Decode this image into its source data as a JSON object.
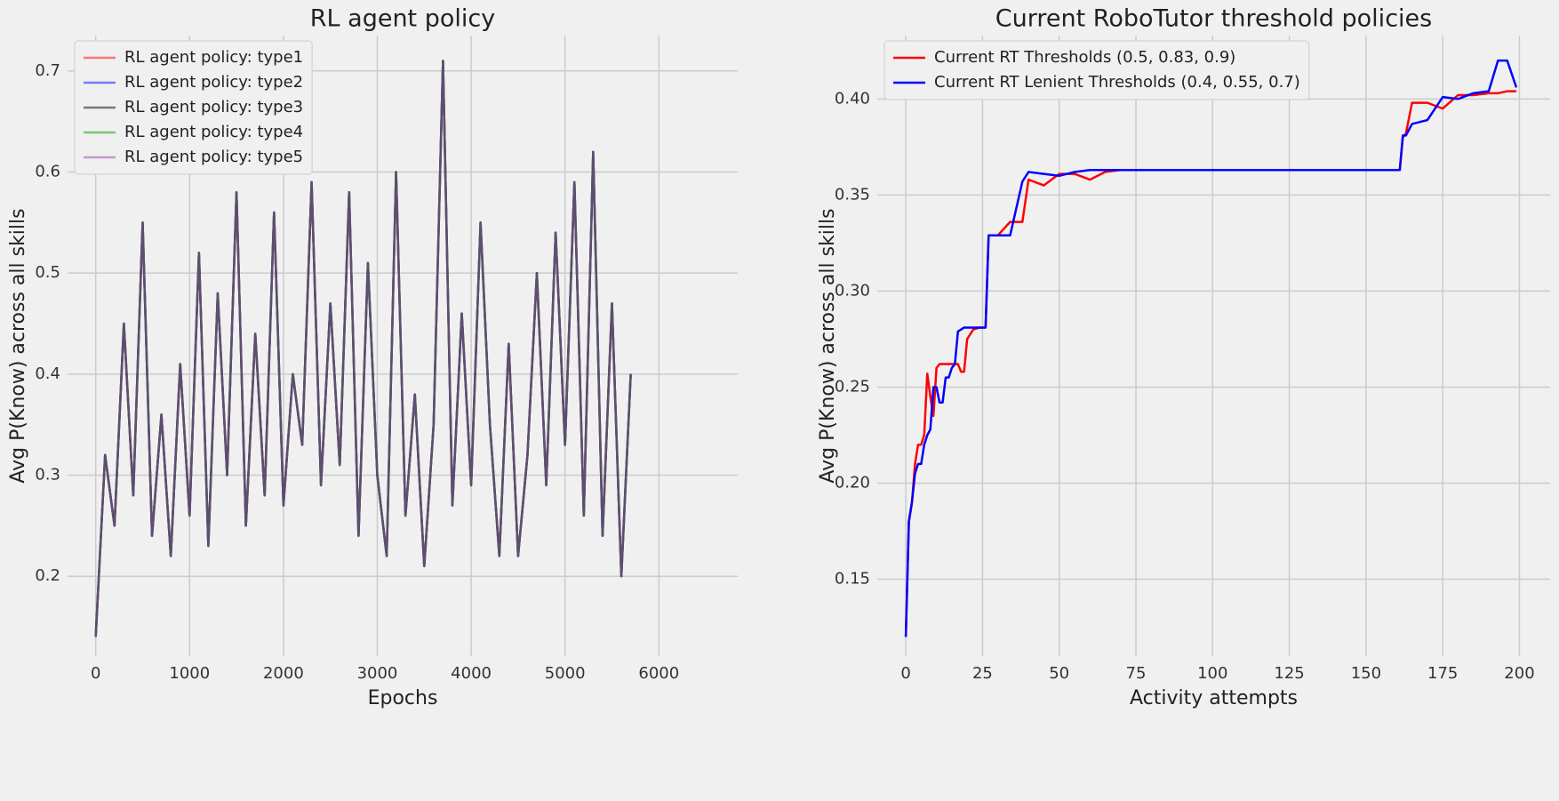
{
  "chart_data": [
    {
      "type": "line",
      "title": "RL agent policy",
      "x_label": "Epochs",
      "y_label": "Avg P(Know) across all skills",
      "x": [
        0,
        100,
        200,
        300,
        400,
        500,
        600,
        700,
        800,
        900,
        1000,
        1100,
        1200,
        1300,
        1400,
        1500,
        1600,
        1700,
        1800,
        1900,
        2000,
        2100,
        2200,
        2300,
        2400,
        2500,
        2600,
        2700,
        2800,
        2900,
        3000,
        3100,
        3200,
        3300,
        3400,
        3500,
        3600,
        3700,
        3800,
        3900,
        4000,
        4100,
        4200,
        4300,
        4400,
        4500,
        4600,
        4700,
        4800,
        4900,
        5000,
        5100,
        5200,
        5300,
        5400,
        5500,
        5600,
        5700
      ],
      "series": [
        {
          "name": "RL agent policy: type1",
          "color": "#ff0000",
          "values": [
            0.14,
            0.32,
            0.25,
            0.45,
            0.28,
            0.55,
            0.24,
            0.36,
            0.22,
            0.41,
            0.26,
            0.52,
            0.23,
            0.48,
            0.3,
            0.58,
            0.25,
            0.44,
            0.28,
            0.56,
            0.27,
            0.4,
            0.33,
            0.59,
            0.29,
            0.47,
            0.31,
            0.58,
            0.24,
            0.51,
            0.3,
            0.22,
            0.6,
            0.26,
            0.38,
            0.21,
            0.35,
            0.71,
            0.27,
            0.46,
            0.29,
            0.55,
            0.35,
            0.22,
            0.43,
            0.22,
            0.32,
            0.5,
            0.29,
            0.54,
            0.33,
            0.59,
            0.26,
            0.62,
            0.24,
            0.47,
            0.2,
            0.4
          ]
        },
        {
          "name": "RL agent policy: type2",
          "color": "#0000ff",
          "values": [
            0.14,
            0.32,
            0.25,
            0.45,
            0.28,
            0.55,
            0.24,
            0.36,
            0.22,
            0.41,
            0.26,
            0.52,
            0.23,
            0.48,
            0.3,
            0.58,
            0.25,
            0.44,
            0.28,
            0.56,
            0.27,
            0.4,
            0.33,
            0.59,
            0.29,
            0.47,
            0.31,
            0.58,
            0.24,
            0.51,
            0.3,
            0.22,
            0.6,
            0.26,
            0.38,
            0.21,
            0.35,
            0.71,
            0.27,
            0.46,
            0.29,
            0.55,
            0.35,
            0.22,
            0.43,
            0.22,
            0.32,
            0.5,
            0.29,
            0.54,
            0.33,
            0.59,
            0.26,
            0.62,
            0.24,
            0.47,
            0.2,
            0.4
          ]
        },
        {
          "name": "RL agent policy: type3",
          "color": "#000000",
          "values": [
            0.14,
            0.32,
            0.25,
            0.45,
            0.28,
            0.55,
            0.24,
            0.36,
            0.22,
            0.41,
            0.26,
            0.52,
            0.23,
            0.48,
            0.3,
            0.58,
            0.25,
            0.44,
            0.28,
            0.56,
            0.27,
            0.4,
            0.33,
            0.59,
            0.29,
            0.47,
            0.31,
            0.58,
            0.24,
            0.51,
            0.3,
            0.22,
            0.6,
            0.26,
            0.38,
            0.21,
            0.35,
            0.71,
            0.27,
            0.46,
            0.29,
            0.55,
            0.35,
            0.22,
            0.43,
            0.22,
            0.32,
            0.5,
            0.29,
            0.54,
            0.33,
            0.59,
            0.26,
            0.62,
            0.24,
            0.47,
            0.2,
            0.4
          ]
        },
        {
          "name": "RL agent policy: type4",
          "color": "#00a000",
          "values": [
            0.14,
            0.32,
            0.25,
            0.45,
            0.28,
            0.55,
            0.24,
            0.36,
            0.22,
            0.41,
            0.26,
            0.52,
            0.23,
            0.48,
            0.3,
            0.58,
            0.25,
            0.44,
            0.28,
            0.56,
            0.27,
            0.4,
            0.33,
            0.59,
            0.29,
            0.47,
            0.31,
            0.58,
            0.24,
            0.51,
            0.3,
            0.22,
            0.6,
            0.26,
            0.38,
            0.21,
            0.35,
            0.71,
            0.27,
            0.46,
            0.29,
            0.55,
            0.35,
            0.22,
            0.43,
            0.22,
            0.32,
            0.5,
            0.29,
            0.54,
            0.33,
            0.59,
            0.26,
            0.62,
            0.24,
            0.47,
            0.2,
            0.4
          ]
        },
        {
          "name": "RL agent policy: type5",
          "color": "#9b3fb0",
          "values": [
            0.14,
            0.32,
            0.25,
            0.45,
            0.28,
            0.55,
            0.24,
            0.36,
            0.22,
            0.41,
            0.26,
            0.52,
            0.23,
            0.48,
            0.3,
            0.58,
            0.25,
            0.44,
            0.28,
            0.56,
            0.27,
            0.4,
            0.33,
            0.59,
            0.29,
            0.47,
            0.31,
            0.58,
            0.24,
            0.51,
            0.3,
            0.22,
            0.6,
            0.26,
            0.38,
            0.21,
            0.35,
            0.71,
            0.27,
            0.46,
            0.29,
            0.55,
            0.35,
            0.22,
            0.43,
            0.22,
            0.32,
            0.5,
            0.29,
            0.54,
            0.33,
            0.59,
            0.26,
            0.62,
            0.24,
            0.47,
            0.2,
            0.4
          ]
        }
      ],
      "line_opacity": 0.5,
      "xlim": [
        -300,
        6840
      ],
      "ylim": [
        0.121,
        0.735
      ],
      "xticks": [
        0,
        1000,
        2000,
        3000,
        4000,
        5000,
        6000
      ],
      "yticks": [
        0.2,
        0.3,
        0.4,
        0.5,
        0.6,
        0.7
      ],
      "grid": true,
      "legend": "upper left"
    },
    {
      "type": "line",
      "title": "Current RoboTutor threshold policies",
      "x_label": "Activity attempts",
      "y_label": "Avg P(Know) across all skills",
      "x": [
        0,
        1,
        2,
        3,
        4,
        5,
        6,
        7,
        8,
        9,
        10,
        11,
        12,
        13,
        14,
        15,
        16,
        17,
        18,
        19,
        20,
        22,
        24,
        26,
        27,
        30,
        34,
        38,
        40,
        45,
        50,
        55,
        60,
        65,
        70,
        80,
        100,
        130,
        160,
        161,
        162,
        163,
        165,
        170,
        175,
        180,
        185,
        190,
        193,
        196,
        199
      ],
      "series": [
        {
          "name": "Current RT Thresholds (0.5, 0.83, 0.9)",
          "color": "#ff0000",
          "values": [
            0.12,
            0.18,
            0.19,
            0.21,
            0.22,
            0.22,
            0.225,
            0.257,
            0.245,
            0.235,
            0.26,
            0.262,
            0.262,
            0.262,
            0.262,
            0.262,
            0.262,
            0.262,
            0.258,
            0.258,
            0.275,
            0.28,
            0.281,
            0.281,
            0.329,
            0.329,
            0.336,
            0.336,
            0.358,
            0.355,
            0.361,
            0.361,
            0.358,
            0.362,
            0.363,
            0.363,
            0.363,
            0.363,
            0.363,
            0.363,
            0.38,
            0.382,
            0.398,
            0.398,
            0.395,
            0.402,
            0.402,
            0.403,
            0.403,
            0.404,
            0.404
          ]
        },
        {
          "name": "Current RT Lenient Thresholds (0.4, 0.55, 0.7)",
          "color": "#0000ff",
          "values": [
            0.12,
            0.18,
            0.19,
            0.205,
            0.21,
            0.21,
            0.22,
            0.225,
            0.228,
            0.25,
            0.25,
            0.242,
            0.242,
            0.255,
            0.255,
            0.26,
            0.262,
            0.279,
            0.28,
            0.281,
            0.281,
            0.281,
            0.281,
            0.281,
            0.329,
            0.329,
            0.329,
            0.357,
            0.362,
            0.361,
            0.36,
            0.362,
            0.363,
            0.363,
            0.363,
            0.363,
            0.363,
            0.363,
            0.363,
            0.363,
            0.381,
            0.381,
            0.387,
            0.389,
            0.401,
            0.4,
            0.403,
            0.404,
            0.42,
            0.42,
            0.406
          ]
        }
      ],
      "line_opacity": 1,
      "xlim": [
        -9.3,
        210
      ],
      "ylim": [
        0.11,
        0.433
      ],
      "xticks": [
        0,
        25,
        50,
        75,
        100,
        125,
        150,
        175,
        200
      ],
      "yticks": [
        0.15,
        {
          "value": 0.2,
          "label": "0.20"
        },
        0.25,
        {
          "value": 0.3,
          "label": "0.30"
        },
        0.35,
        {
          "value": 0.4,
          "label": "0.40"
        }
      ],
      "grid": true,
      "legend": "upper left"
    }
  ]
}
